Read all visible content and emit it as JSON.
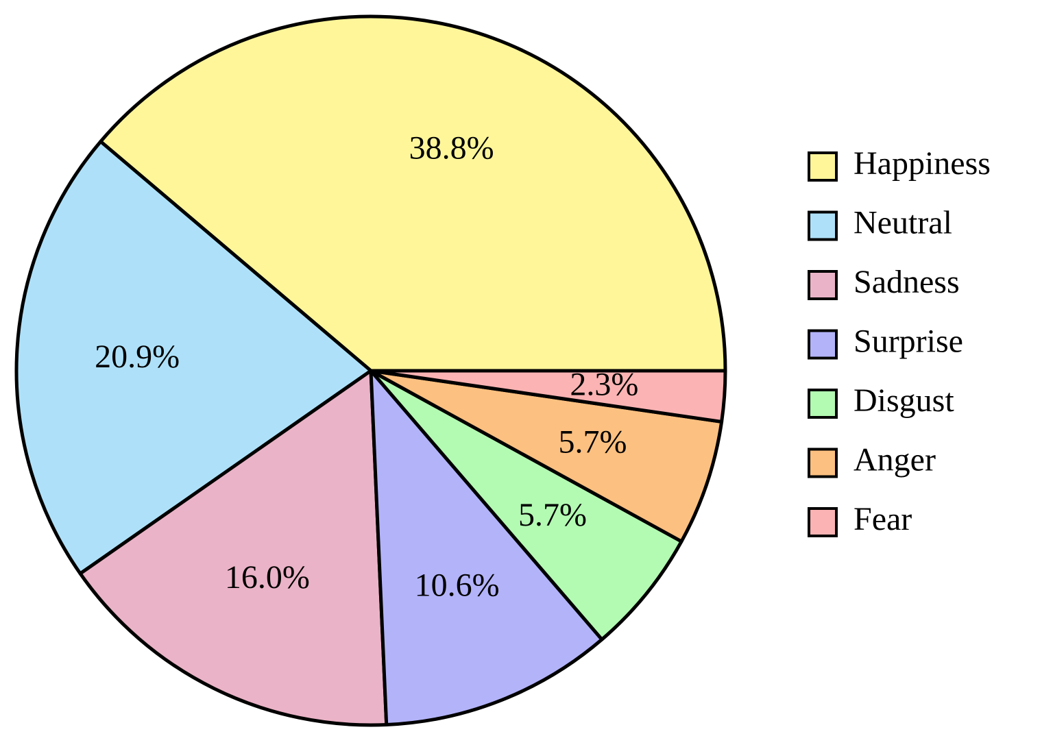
{
  "chart_data": {
    "type": "pie",
    "categories": [
      "Happiness",
      "Neutral",
      "Sadness",
      "Surprise",
      "Disgust",
      "Anger",
      "Fear"
    ],
    "values": [
      38.8,
      20.9,
      16.0,
      10.6,
      5.7,
      5.7,
      2.3
    ],
    "value_labels": [
      "38.8%",
      "20.9%",
      "16.0%",
      "10.6%",
      "5.7%",
      "5.7%",
      "2.3%"
    ],
    "colors": [
      "#fff69a",
      "#aee1f9",
      "#ebb3c7",
      "#b3b3fa",
      "#b3fab3",
      "#fcc080",
      "#fbb3b3"
    ],
    "legend": "right"
  }
}
